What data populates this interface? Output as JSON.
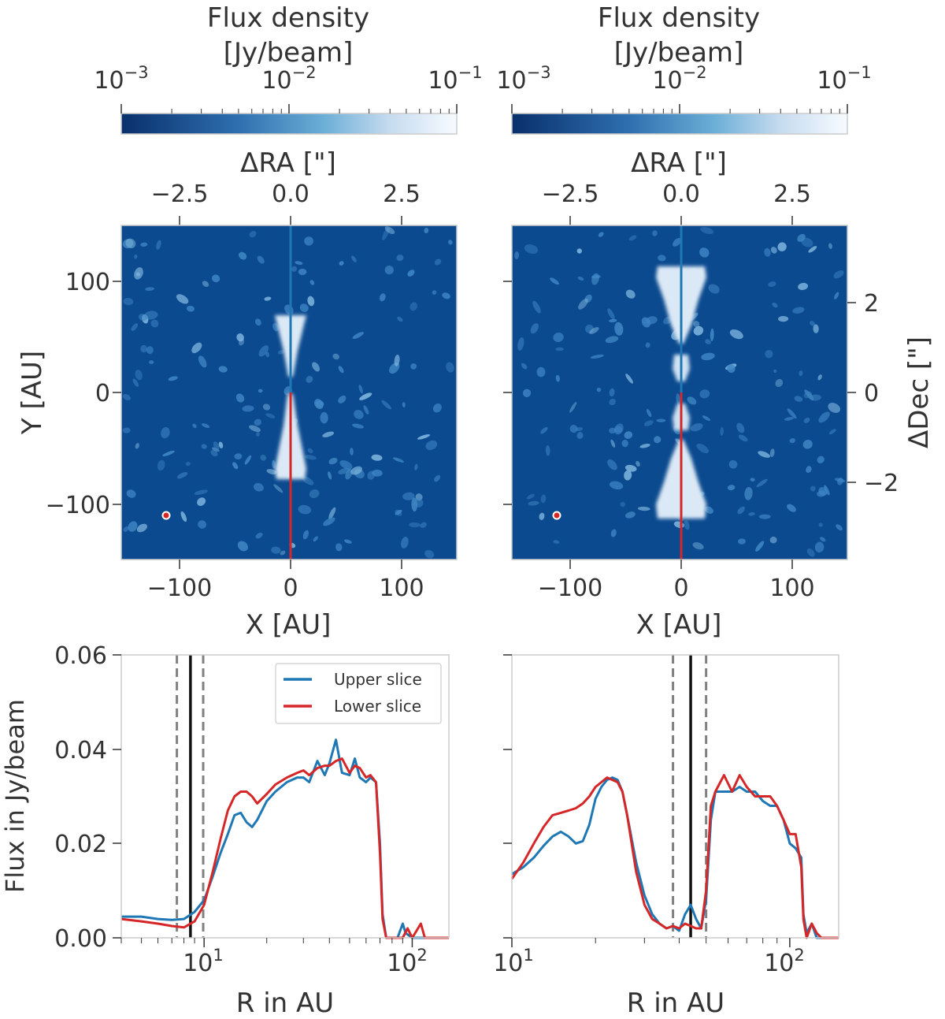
{
  "panels": {
    "left": {
      "colorbar": {
        "title_line1": "Flux density",
        "title_line2": "[Jy/beam]"
      },
      "top_axis_label": "ΔRA [\"]",
      "bottom_axis_label": "X [AU]",
      "left_axis_label": "Y [AU]"
    },
    "right": {
      "colorbar": {
        "title_line1": "Flux density",
        "title_line2": "[Jy/beam]"
      },
      "top_axis_label": "ΔRA [\"]",
      "bottom_axis_label": "X [AU]",
      "right_axis_label": "ΔDec [\"]"
    }
  },
  "colors": {
    "map_background": "#0b4a8f",
    "map_bright": "#e6f0fa",
    "upper_slice": "#1f77b4",
    "lower_slice": "#d62728",
    "limit_dashed": "#808080",
    "limit_solid": "#111111",
    "axis_frame": "#cccccc"
  },
  "chart_data": [
    {
      "type": "heatmap",
      "panel": "top-left",
      "colorbar": {
        "label": "Flux density [Jy/beam]",
        "scale": "log",
        "range": [
          0.001,
          0.1
        ],
        "ticks": [
          "10^-3",
          "10^-2",
          "10^-1"
        ],
        "colormap": "dark blue to white"
      },
      "x": {
        "label": "X [AU]",
        "range": [
          -150,
          150
        ],
        "ticks": [
          "−100",
          "0",
          "100"
        ]
      },
      "y": {
        "label": "Y [AU]",
        "range": [
          -150,
          150
        ],
        "ticks": [
          "−100",
          "0",
          "100"
        ]
      },
      "x_top": {
        "label": "ΔRA [\"]",
        "ticks": [
          "−2.5",
          "0.0",
          "2.5"
        ]
      },
      "emission": [
        {
          "part": "upper lobe",
          "y_range": [
            0,
            68
          ]
        },
        {
          "part": "lower lobe",
          "y_range": [
            -68,
            0
          ]
        }
      ],
      "slices": [
        {
          "name": "Upper slice",
          "x": 0,
          "y_range": [
            0,
            150
          ]
        },
        {
          "name": "Lower slice",
          "x": 0,
          "y_range": [
            -150,
            0
          ]
        }
      ],
      "beam": {
        "x": -110,
        "y": -110
      }
    },
    {
      "type": "heatmap",
      "panel": "top-right",
      "colorbar": {
        "label": "Flux density [Jy/beam]",
        "scale": "log",
        "range": [
          0.001,
          0.1
        ],
        "ticks": [
          "10^-3",
          "10^-2",
          "10^-1"
        ],
        "colormap": "dark blue to white"
      },
      "x": {
        "label": "X [AU]",
        "range": [
          -150,
          150
        ],
        "ticks": [
          "−100",
          "0",
          "100"
        ]
      },
      "y_right": {
        "label": "ΔDec [\"]",
        "ticks": [
          "2",
          "0",
          "−2"
        ]
      },
      "x_top": {
        "label": "ΔRA [\"]",
        "ticks": [
          "−2.5",
          "0.0",
          "2.5"
        ]
      },
      "emission": [
        {
          "part": "outer upper lobe",
          "y_range": [
            43,
            112
          ]
        },
        {
          "part": "inner upper ring",
          "y_range": [
            10,
            34
          ]
        },
        {
          "part": "inner lower ring",
          "y_range": [
            -34,
            -10
          ]
        },
        {
          "part": "outer lower lobe",
          "y_range": [
            -112,
            -43
          ]
        }
      ],
      "slices": [
        {
          "name": "Upper slice",
          "x": 0,
          "y_range": [
            0,
            150
          ]
        },
        {
          "name": "Lower slice",
          "x": 0,
          "y_range": [
            -150,
            0
          ]
        }
      ],
      "beam": {
        "x": -110,
        "y": -110
      }
    },
    {
      "type": "line",
      "panel": "bottom-left",
      "xlabel": "R in AU",
      "ylabel": "Flux in Jy/beam",
      "xscale": "log",
      "xlim": [
        4,
        150
      ],
      "ylim": [
        0,
        0.06
      ],
      "yticks": [
        "0.00",
        "0.02",
        "0.04",
        "0.06"
      ],
      "xticks": [
        "10^1",
        "10^2"
      ],
      "legend": {
        "position": "top-right",
        "entries": [
          "Upper slice",
          "Lower slice"
        ]
      },
      "vlines": [
        {
          "x": 7.4,
          "style": "dashed"
        },
        {
          "x": 8.6,
          "style": "solid"
        },
        {
          "x": 9.9,
          "style": "dashed"
        }
      ],
      "series": [
        {
          "name": "Upper slice",
          "points": [
            [
              4,
              0.0045
            ],
            [
              5,
              0.0045
            ],
            [
              6,
              0.004
            ],
            [
              7,
              0.0038
            ],
            [
              8,
              0.004
            ],
            [
              9,
              0.0055
            ],
            [
              10,
              0.008
            ],
            [
              11,
              0.013
            ],
            [
              12,
              0.018
            ],
            [
              13,
              0.022
            ],
            [
              14,
              0.026
            ],
            [
              15,
              0.0265
            ],
            [
              16,
              0.0245
            ],
            [
              17,
              0.0235
            ],
            [
              18,
              0.025
            ],
            [
              20,
              0.029
            ],
            [
              22,
              0.031
            ],
            [
              25,
              0.033
            ],
            [
              28,
              0.034
            ],
            [
              30,
              0.034
            ],
            [
              32,
              0.033
            ],
            [
              35,
              0.0375
            ],
            [
              38,
              0.0345
            ],
            [
              40,
              0.037
            ],
            [
              43,
              0.042
            ],
            [
              46,
              0.035
            ],
            [
              50,
              0.0345
            ],
            [
              53,
              0.038
            ],
            [
              56,
              0.034
            ],
            [
              60,
              0.033
            ],
            [
              63,
              0.034
            ],
            [
              67,
              0.033
            ],
            [
              70,
              0.02
            ],
            [
              72,
              0.005
            ],
            [
              75,
              0.0
            ],
            [
              85,
              0.0
            ],
            [
              90,
              0.003
            ],
            [
              93,
              0.001
            ],
            [
              100,
              0.0
            ],
            [
              150,
              0.0
            ]
          ]
        },
        {
          "name": "Lower slice",
          "points": [
            [
              4,
              0.004
            ],
            [
              5,
              0.0035
            ],
            [
              6,
              0.003
            ],
            [
              7,
              0.0025
            ],
            [
              8,
              0.0022
            ],
            [
              9,
              0.0035
            ],
            [
              10,
              0.007
            ],
            [
              11,
              0.014
            ],
            [
              12,
              0.021
            ],
            [
              13,
              0.027
            ],
            [
              14,
              0.03
            ],
            [
              15,
              0.031
            ],
            [
              16,
              0.031
            ],
            [
              17,
              0.03
            ],
            [
              18,
              0.0285
            ],
            [
              20,
              0.0305
            ],
            [
              22,
              0.0325
            ],
            [
              25,
              0.034
            ],
            [
              28,
              0.035
            ],
            [
              30,
              0.0355
            ],
            [
              32,
              0.0345
            ],
            [
              35,
              0.036
            ],
            [
              38,
              0.0365
            ],
            [
              40,
              0.0365
            ],
            [
              43,
              0.0375
            ],
            [
              46,
              0.038
            ],
            [
              50,
              0.035
            ],
            [
              53,
              0.0365
            ],
            [
              56,
              0.036
            ],
            [
              60,
              0.034
            ],
            [
              63,
              0.0345
            ],
            [
              67,
              0.033
            ],
            [
              70,
              0.018
            ],
            [
              72,
              0.004
            ],
            [
              75,
              0.0
            ],
            [
              90,
              0.0
            ],
            [
              95,
              0.002
            ],
            [
              100,
              0.0
            ],
            [
              110,
              0.003
            ],
            [
              115,
              0.0
            ],
            [
              150,
              0.0
            ]
          ]
        }
      ]
    },
    {
      "type": "line",
      "panel": "bottom-right",
      "xlabel": "R in AU",
      "xscale": "log",
      "xlim": [
        10,
        150
      ],
      "ylim": [
        0,
        0.06
      ],
      "xticks": [
        "10^1",
        "10^2"
      ],
      "vlines": [
        {
          "x": 38,
          "style": "dashed"
        },
        {
          "x": 44,
          "style": "solid"
        },
        {
          "x": 50,
          "style": "dashed"
        }
      ],
      "series": [
        {
          "name": "Upper slice",
          "points": [
            [
              10,
              0.0135
            ],
            [
              11,
              0.015
            ],
            [
              12,
              0.017
            ],
            [
              13,
              0.0195
            ],
            [
              14,
              0.0215
            ],
            [
              15,
              0.0225
            ],
            [
              16,
              0.0215
            ],
            [
              17,
              0.02
            ],
            [
              18,
              0.0205
            ],
            [
              19,
              0.024
            ],
            [
              20,
              0.0295
            ],
            [
              21,
              0.032
            ],
            [
              22,
              0.0335
            ],
            [
              23,
              0.034
            ],
            [
              24,
              0.0335
            ],
            [
              25,
              0.031
            ],
            [
              26,
              0.026
            ],
            [
              28,
              0.016
            ],
            [
              30,
              0.009
            ],
            [
              32,
              0.005
            ],
            [
              34,
              0.003
            ],
            [
              36,
              0.002
            ],
            [
              38,
              0.0025
            ],
            [
              40,
              0.0015
            ],
            [
              42,
              0.005
            ],
            [
              44,
              0.007
            ],
            [
              46,
              0.004
            ],
            [
              48,
              0.002
            ],
            [
              50,
              0.008
            ],
            [
              52,
              0.025
            ],
            [
              54,
              0.031
            ],
            [
              58,
              0.031
            ],
            [
              62,
              0.031
            ],
            [
              66,
              0.032
            ],
            [
              70,
              0.031
            ],
            [
              75,
              0.031
            ],
            [
              80,
              0.029
            ],
            [
              85,
              0.028
            ],
            [
              90,
              0.028
            ],
            [
              95,
              0.025
            ],
            [
              100,
              0.02
            ],
            [
              105,
              0.019
            ],
            [
              110,
              0.017
            ],
            [
              112,
              0.005
            ],
            [
              115,
              0.001
            ],
            [
              120,
              0.003
            ],
            [
              125,
              0.0
            ],
            [
              150,
              0.0
            ]
          ]
        },
        {
          "name": "Lower slice",
          "points": [
            [
              10,
              0.0125
            ],
            [
              11,
              0.016
            ],
            [
              12,
              0.02
            ],
            [
              13,
              0.0235
            ],
            [
              14,
              0.026
            ],
            [
              15,
              0.0265
            ],
            [
              16,
              0.027
            ],
            [
              17,
              0.0275
            ],
            [
              18,
              0.0285
            ],
            [
              19,
              0.03
            ],
            [
              20,
              0.032
            ],
            [
              21,
              0.033
            ],
            [
              22,
              0.034
            ],
            [
              23,
              0.0335
            ],
            [
              24,
              0.033
            ],
            [
              25,
              0.031
            ],
            [
              26,
              0.026
            ],
            [
              28,
              0.014
            ],
            [
              30,
              0.007
            ],
            [
              32,
              0.004
            ],
            [
              34,
              0.003
            ],
            [
              36,
              0.002
            ],
            [
              38,
              0.0025
            ],
            [
              40,
              0.002
            ],
            [
              42,
              0.003
            ],
            [
              44,
              0.0025
            ],
            [
              46,
              0.002
            ],
            [
              48,
              0.002
            ],
            [
              50,
              0.01
            ],
            [
              52,
              0.028
            ],
            [
              54,
              0.031
            ],
            [
              58,
              0.0345
            ],
            [
              62,
              0.031
            ],
            [
              66,
              0.0345
            ],
            [
              70,
              0.032
            ],
            [
              75,
              0.03
            ],
            [
              80,
              0.03
            ],
            [
              85,
              0.03
            ],
            [
              90,
              0.028
            ],
            [
              95,
              0.025
            ],
            [
              100,
              0.022
            ],
            [
              105,
              0.022
            ],
            [
              110,
              0.015
            ],
            [
              112,
              0.004
            ],
            [
              115,
              0.0
            ],
            [
              120,
              0.003
            ],
            [
              125,
              0.001
            ],
            [
              130,
              0.0
            ],
            [
              150,
              0.0
            ]
          ]
        }
      ]
    }
  ]
}
